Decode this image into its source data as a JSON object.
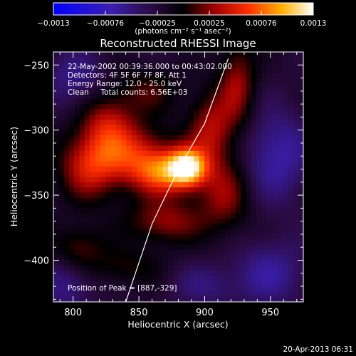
{
  "chart_data": {
    "type": "heatmap",
    "title": "Reconstructed RHESSI Image",
    "xlabel": "Heliocentric X (arcsec)",
    "ylabel": "Heliocentric Y (arcsec)",
    "xlim": [
      785,
      975
    ],
    "ylim": [
      -432,
      -240
    ],
    "x_ticks": [
      800,
      850,
      900,
      950
    ],
    "y_ticks": [
      -250,
      -300,
      -350,
      -400
    ],
    "colorbar": {
      "range": [
        -0.0013,
        0.0013
      ],
      "tick_labels": [
        "-0.0013",
        "-0.00076",
        "-0.00025",
        "0.00025",
        "0.00076",
        "0.0013"
      ],
      "unit_label": "(photons cm⁻² s⁻¹ asec⁻²)",
      "colormap": "blue-purple-black-red-orange-yellow-white"
    },
    "info_lines": [
      "22-May-2002 00:39:36.000 to 00:43:02.000",
      "Detectors: 4F 5F 6F 7F 8F, Att 1",
      "Energy Range: 12.0 - 25.0 keV",
      "Clean     Total counts: 6.56E+03"
    ],
    "peak": {
      "x": 887,
      "y": -329
    },
    "peak_label": "Position of Peak = [887,-329]",
    "limb_line": [
      [
        840,
        -432
      ],
      [
        860,
        -372
      ],
      [
        880,
        -330
      ],
      [
        900,
        -295
      ],
      [
        918,
        -245
      ]
    ],
    "sources": [
      {
        "x": 887,
        "y": -329,
        "amp": 1.0,
        "sx": 10,
        "sy": 10
      },
      {
        "x": 868,
        "y": -333,
        "amp": 0.62,
        "sx": 16,
        "sy": 12
      },
      {
        "x": 840,
        "y": -318,
        "amp": 0.55,
        "sx": 24,
        "sy": 16
      },
      {
        "x": 812,
        "y": -330,
        "amp": 0.42,
        "sx": 16,
        "sy": 18
      },
      {
        "x": 826,
        "y": -293,
        "amp": 0.38,
        "sx": 14,
        "sy": 14
      },
      {
        "x": 905,
        "y": -300,
        "amp": 0.45,
        "sx": 12,
        "sy": 20
      },
      {
        "x": 925,
        "y": -265,
        "amp": 0.4,
        "sx": 10,
        "sy": 24
      },
      {
        "x": 915,
        "y": -350,
        "amp": 0.38,
        "sx": 14,
        "sy": 20
      },
      {
        "x": 870,
        "y": -370,
        "amp": 0.4,
        "sx": 20,
        "sy": 12
      },
      {
        "x": 840,
        "y": -405,
        "amp": 0.22,
        "sx": 18,
        "sy": 10
      },
      {
        "x": 805,
        "y": -390,
        "amp": 0.28,
        "sx": 14,
        "sy": 12
      },
      {
        "x": 855,
        "y": -270,
        "amp": 0.25,
        "sx": 18,
        "sy": 12
      },
      {
        "x": 955,
        "y": -320,
        "amp": -0.35,
        "sx": 18,
        "sy": 25
      },
      {
        "x": 950,
        "y": -410,
        "amp": -0.3,
        "sx": 20,
        "sy": 18
      },
      {
        "x": 800,
        "y": -260,
        "amp": -0.25,
        "sx": 16,
        "sy": 16
      },
      {
        "x": 795,
        "y": -420,
        "amp": -0.25,
        "sx": 14,
        "sy": 14
      },
      {
        "x": 900,
        "y": -420,
        "amp": -0.2,
        "sx": 18,
        "sy": 12
      }
    ]
  },
  "footer": {
    "timestamp": "20-Apr-2013 06:31"
  }
}
